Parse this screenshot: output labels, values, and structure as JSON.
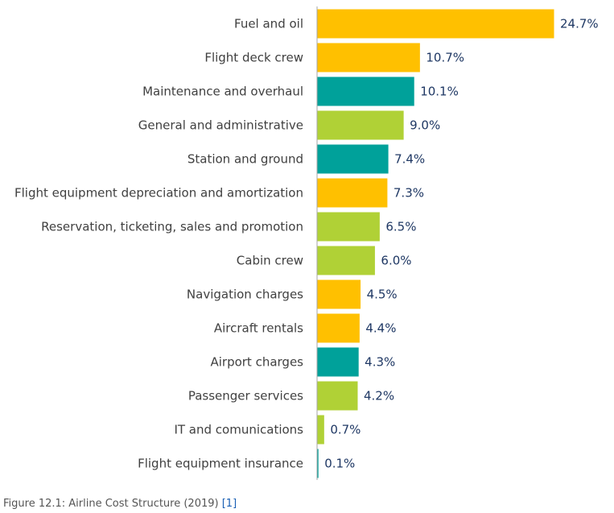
{
  "chart_data": {
    "type": "bar",
    "orientation": "horizontal",
    "categories": [
      "Fuel and oil",
      "Flight deck crew",
      "Maintenance and overhaul",
      "General and administrative",
      "Station and ground",
      "Flight equipment depreciation and amortization",
      "Reservation, ticketing, sales and promotion",
      "Cabin crew",
      "Navigation charges",
      "Aircraft rentals",
      "Airport charges",
      "Passenger services",
      "IT and comunications",
      "Flight equipment insurance"
    ],
    "values": [
      24.7,
      10.7,
      10.1,
      9.0,
      7.4,
      7.3,
      6.5,
      6.0,
      4.5,
      4.4,
      4.3,
      4.2,
      0.7,
      0.1
    ],
    "value_labels": [
      "24.7%",
      "10.7%",
      "10.1%",
      "9.0%",
      "7.4%",
      "7.3%",
      "6.5%",
      "6.0%",
      "4.5%",
      "4.4%",
      "4.3%",
      "4.2%",
      "0.7%",
      "0.1%"
    ],
    "bar_colors": [
      "#ffc000",
      "#ffc000",
      "#00a19a",
      "#b0d136",
      "#00a19a",
      "#ffc000",
      "#b0d136",
      "#b0d136",
      "#ffc000",
      "#ffc000",
      "#00a19a",
      "#b0d136",
      "#b0d136",
      "#00a19a"
    ],
    "xlim": [
      0,
      24.7
    ],
    "title": "",
    "xlabel": "",
    "ylabel": "",
    "grid": false,
    "legend": "none"
  },
  "colors": {
    "axis": "#a6a6a6",
    "category_text": "#404040",
    "value_text": "#1f3864",
    "caption_text": "#555555",
    "caption_link": "#1a5fb4"
  },
  "caption": {
    "text": "Figure 12.1: Airline Cost Structure (2019) ",
    "reference": "[1]"
  }
}
